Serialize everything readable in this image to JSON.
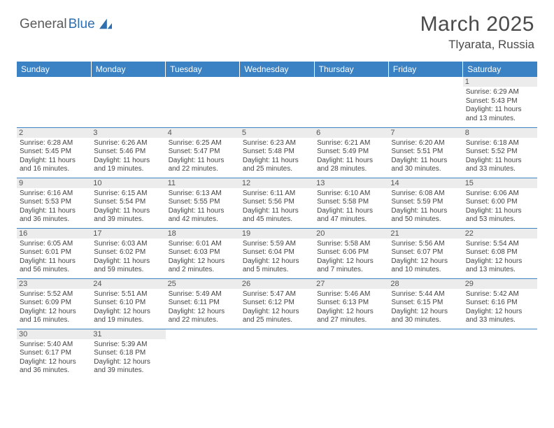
{
  "logo": {
    "part1": "General",
    "part2": "Blue"
  },
  "title": "March 2025",
  "location": "Tlyarata, Russia",
  "colors": {
    "header_bg": "#3b82c4",
    "header_text": "#ffffff",
    "daynum_bg": "#ececec",
    "border": "#3b82c4",
    "logo_gray": "#5a5a5a",
    "logo_blue": "#2f6fb0"
  },
  "dayHeaders": [
    "Sunday",
    "Monday",
    "Tuesday",
    "Wednesday",
    "Thursday",
    "Friday",
    "Saturday"
  ],
  "weeks": [
    [
      {
        "n": "",
        "sr": "",
        "ss": "",
        "dl": ""
      },
      {
        "n": "",
        "sr": "",
        "ss": "",
        "dl": ""
      },
      {
        "n": "",
        "sr": "",
        "ss": "",
        "dl": ""
      },
      {
        "n": "",
        "sr": "",
        "ss": "",
        "dl": ""
      },
      {
        "n": "",
        "sr": "",
        "ss": "",
        "dl": ""
      },
      {
        "n": "",
        "sr": "",
        "ss": "",
        "dl": ""
      },
      {
        "n": "1",
        "sr": "Sunrise: 6:29 AM",
        "ss": "Sunset: 5:43 PM",
        "dl": "Daylight: 11 hours and 13 minutes."
      }
    ],
    [
      {
        "n": "2",
        "sr": "Sunrise: 6:28 AM",
        "ss": "Sunset: 5:45 PM",
        "dl": "Daylight: 11 hours and 16 minutes."
      },
      {
        "n": "3",
        "sr": "Sunrise: 6:26 AM",
        "ss": "Sunset: 5:46 PM",
        "dl": "Daylight: 11 hours and 19 minutes."
      },
      {
        "n": "4",
        "sr": "Sunrise: 6:25 AM",
        "ss": "Sunset: 5:47 PM",
        "dl": "Daylight: 11 hours and 22 minutes."
      },
      {
        "n": "5",
        "sr": "Sunrise: 6:23 AM",
        "ss": "Sunset: 5:48 PM",
        "dl": "Daylight: 11 hours and 25 minutes."
      },
      {
        "n": "6",
        "sr": "Sunrise: 6:21 AM",
        "ss": "Sunset: 5:49 PM",
        "dl": "Daylight: 11 hours and 28 minutes."
      },
      {
        "n": "7",
        "sr": "Sunrise: 6:20 AM",
        "ss": "Sunset: 5:51 PM",
        "dl": "Daylight: 11 hours and 30 minutes."
      },
      {
        "n": "8",
        "sr": "Sunrise: 6:18 AM",
        "ss": "Sunset: 5:52 PM",
        "dl": "Daylight: 11 hours and 33 minutes."
      }
    ],
    [
      {
        "n": "9",
        "sr": "Sunrise: 6:16 AM",
        "ss": "Sunset: 5:53 PM",
        "dl": "Daylight: 11 hours and 36 minutes."
      },
      {
        "n": "10",
        "sr": "Sunrise: 6:15 AM",
        "ss": "Sunset: 5:54 PM",
        "dl": "Daylight: 11 hours and 39 minutes."
      },
      {
        "n": "11",
        "sr": "Sunrise: 6:13 AM",
        "ss": "Sunset: 5:55 PM",
        "dl": "Daylight: 11 hours and 42 minutes."
      },
      {
        "n": "12",
        "sr": "Sunrise: 6:11 AM",
        "ss": "Sunset: 5:56 PM",
        "dl": "Daylight: 11 hours and 45 minutes."
      },
      {
        "n": "13",
        "sr": "Sunrise: 6:10 AM",
        "ss": "Sunset: 5:58 PM",
        "dl": "Daylight: 11 hours and 47 minutes."
      },
      {
        "n": "14",
        "sr": "Sunrise: 6:08 AM",
        "ss": "Sunset: 5:59 PM",
        "dl": "Daylight: 11 hours and 50 minutes."
      },
      {
        "n": "15",
        "sr": "Sunrise: 6:06 AM",
        "ss": "Sunset: 6:00 PM",
        "dl": "Daylight: 11 hours and 53 minutes."
      }
    ],
    [
      {
        "n": "16",
        "sr": "Sunrise: 6:05 AM",
        "ss": "Sunset: 6:01 PM",
        "dl": "Daylight: 11 hours and 56 minutes."
      },
      {
        "n": "17",
        "sr": "Sunrise: 6:03 AM",
        "ss": "Sunset: 6:02 PM",
        "dl": "Daylight: 11 hours and 59 minutes."
      },
      {
        "n": "18",
        "sr": "Sunrise: 6:01 AM",
        "ss": "Sunset: 6:03 PM",
        "dl": "Daylight: 12 hours and 2 minutes."
      },
      {
        "n": "19",
        "sr": "Sunrise: 5:59 AM",
        "ss": "Sunset: 6:04 PM",
        "dl": "Daylight: 12 hours and 5 minutes."
      },
      {
        "n": "20",
        "sr": "Sunrise: 5:58 AM",
        "ss": "Sunset: 6:06 PM",
        "dl": "Daylight: 12 hours and 7 minutes."
      },
      {
        "n": "21",
        "sr": "Sunrise: 5:56 AM",
        "ss": "Sunset: 6:07 PM",
        "dl": "Daylight: 12 hours and 10 minutes."
      },
      {
        "n": "22",
        "sr": "Sunrise: 5:54 AM",
        "ss": "Sunset: 6:08 PM",
        "dl": "Daylight: 12 hours and 13 minutes."
      }
    ],
    [
      {
        "n": "23",
        "sr": "Sunrise: 5:52 AM",
        "ss": "Sunset: 6:09 PM",
        "dl": "Daylight: 12 hours and 16 minutes."
      },
      {
        "n": "24",
        "sr": "Sunrise: 5:51 AM",
        "ss": "Sunset: 6:10 PM",
        "dl": "Daylight: 12 hours and 19 minutes."
      },
      {
        "n": "25",
        "sr": "Sunrise: 5:49 AM",
        "ss": "Sunset: 6:11 PM",
        "dl": "Daylight: 12 hours and 22 minutes."
      },
      {
        "n": "26",
        "sr": "Sunrise: 5:47 AM",
        "ss": "Sunset: 6:12 PM",
        "dl": "Daylight: 12 hours and 25 minutes."
      },
      {
        "n": "27",
        "sr": "Sunrise: 5:46 AM",
        "ss": "Sunset: 6:13 PM",
        "dl": "Daylight: 12 hours and 27 minutes."
      },
      {
        "n": "28",
        "sr": "Sunrise: 5:44 AM",
        "ss": "Sunset: 6:15 PM",
        "dl": "Daylight: 12 hours and 30 minutes."
      },
      {
        "n": "29",
        "sr": "Sunrise: 5:42 AM",
        "ss": "Sunset: 6:16 PM",
        "dl": "Daylight: 12 hours and 33 minutes."
      }
    ],
    [
      {
        "n": "30",
        "sr": "Sunrise: 5:40 AM",
        "ss": "Sunset: 6:17 PM",
        "dl": "Daylight: 12 hours and 36 minutes."
      },
      {
        "n": "31",
        "sr": "Sunrise: 5:39 AM",
        "ss": "Sunset: 6:18 PM",
        "dl": "Daylight: 12 hours and 39 minutes."
      },
      {
        "n": "",
        "sr": "",
        "ss": "",
        "dl": ""
      },
      {
        "n": "",
        "sr": "",
        "ss": "",
        "dl": ""
      },
      {
        "n": "",
        "sr": "",
        "ss": "",
        "dl": ""
      },
      {
        "n": "",
        "sr": "",
        "ss": "",
        "dl": ""
      },
      {
        "n": "",
        "sr": "",
        "ss": "",
        "dl": ""
      }
    ]
  ]
}
